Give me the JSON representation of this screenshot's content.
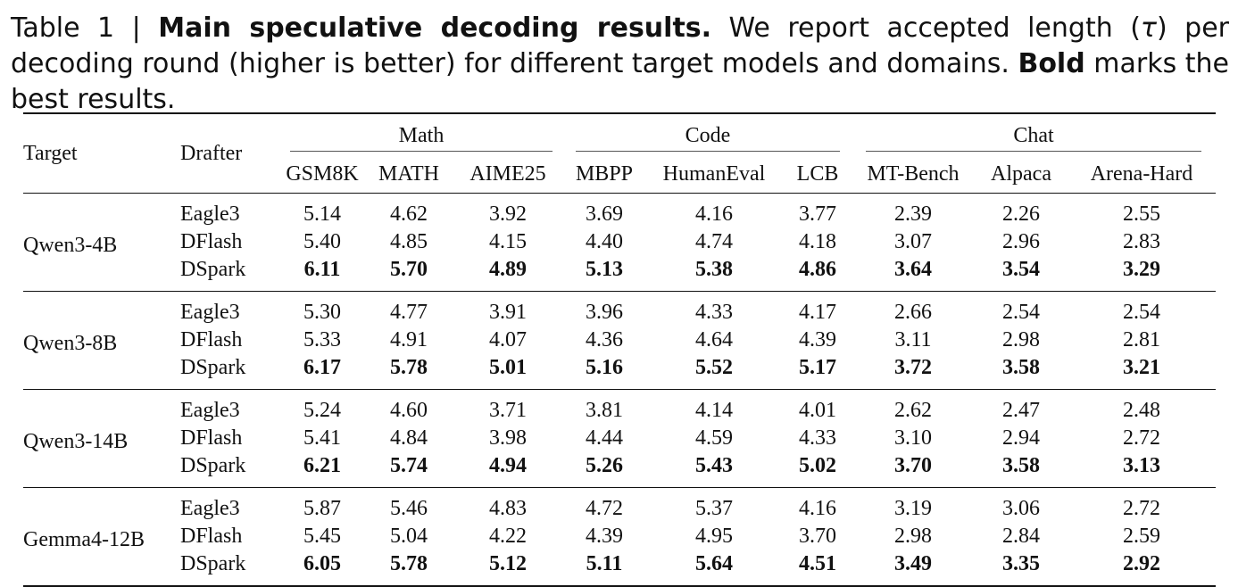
{
  "caption": {
    "prefix": "Table 1 | ",
    "bold_title": "Main speculative decoding results.",
    "text1": " We report accepted length (",
    "tau": "τ",
    "text2": ") per decoding round (higher is better) for different target models and domains. ",
    "bold_word": "Bold",
    "text3": " marks the best results."
  },
  "header": {
    "target": "Target",
    "drafter": "Drafter",
    "groups": [
      "Math",
      "Code",
      "Chat"
    ],
    "columns": [
      "GSM8K",
      "MATH",
      "AIME25",
      "MBPP",
      "HumanEval",
      "LCB",
      "MT-Bench",
      "Alpaca",
      "Arena-Hard"
    ]
  },
  "blocks": [
    {
      "target": "Qwen3-4B",
      "rows": [
        {
          "drafter": "Eagle3",
          "values": [
            "5.14",
            "4.62",
            "3.92",
            "3.69",
            "4.16",
            "3.77",
            "2.39",
            "2.26",
            "2.55"
          ],
          "best": false
        },
        {
          "drafter": "DFlash",
          "values": [
            "5.40",
            "4.85",
            "4.15",
            "4.40",
            "4.74",
            "4.18",
            "3.07",
            "2.96",
            "2.83"
          ],
          "best": false
        },
        {
          "drafter": "DSpark",
          "values": [
            "6.11",
            "5.70",
            "4.89",
            "5.13",
            "5.38",
            "4.86",
            "3.64",
            "3.54",
            "3.29"
          ],
          "best": true
        }
      ]
    },
    {
      "target": "Qwen3-8B",
      "rows": [
        {
          "drafter": "Eagle3",
          "values": [
            "5.30",
            "4.77",
            "3.91",
            "3.96",
            "4.33",
            "4.17",
            "2.66",
            "2.54",
            "2.54"
          ],
          "best": false
        },
        {
          "drafter": "DFlash",
          "values": [
            "5.33",
            "4.91",
            "4.07",
            "4.36",
            "4.64",
            "4.39",
            "3.11",
            "2.98",
            "2.81"
          ],
          "best": false
        },
        {
          "drafter": "DSpark",
          "values": [
            "6.17",
            "5.78",
            "5.01",
            "5.16",
            "5.52",
            "5.17",
            "3.72",
            "3.58",
            "3.21"
          ],
          "best": true
        }
      ]
    },
    {
      "target": "Qwen3-14B",
      "rows": [
        {
          "drafter": "Eagle3",
          "values": [
            "5.24",
            "4.60",
            "3.71",
            "3.81",
            "4.14",
            "4.01",
            "2.62",
            "2.47",
            "2.48"
          ],
          "best": false
        },
        {
          "drafter": "DFlash",
          "values": [
            "5.41",
            "4.84",
            "3.98",
            "4.44",
            "4.59",
            "4.33",
            "3.10",
            "2.94",
            "2.72"
          ],
          "best": false
        },
        {
          "drafter": "DSpark",
          "values": [
            "6.21",
            "5.74",
            "4.94",
            "5.26",
            "5.43",
            "5.02",
            "3.70",
            "3.58",
            "3.13"
          ],
          "best": true
        }
      ]
    },
    {
      "target": "Gemma4-12B",
      "rows": [
        {
          "drafter": "Eagle3",
          "values": [
            "5.87",
            "5.46",
            "4.83",
            "4.72",
            "5.37",
            "4.16",
            "3.19",
            "3.06",
            "2.72"
          ],
          "best": false
        },
        {
          "drafter": "DFlash",
          "values": [
            "5.45",
            "5.04",
            "4.22",
            "4.39",
            "4.95",
            "3.70",
            "2.98",
            "2.84",
            "2.59"
          ],
          "best": false
        },
        {
          "drafter": "DSpark",
          "values": [
            "6.05",
            "5.78",
            "5.12",
            "5.11",
            "5.64",
            "4.51",
            "3.49",
            "3.35",
            "2.92"
          ],
          "best": true
        }
      ]
    }
  ]
}
